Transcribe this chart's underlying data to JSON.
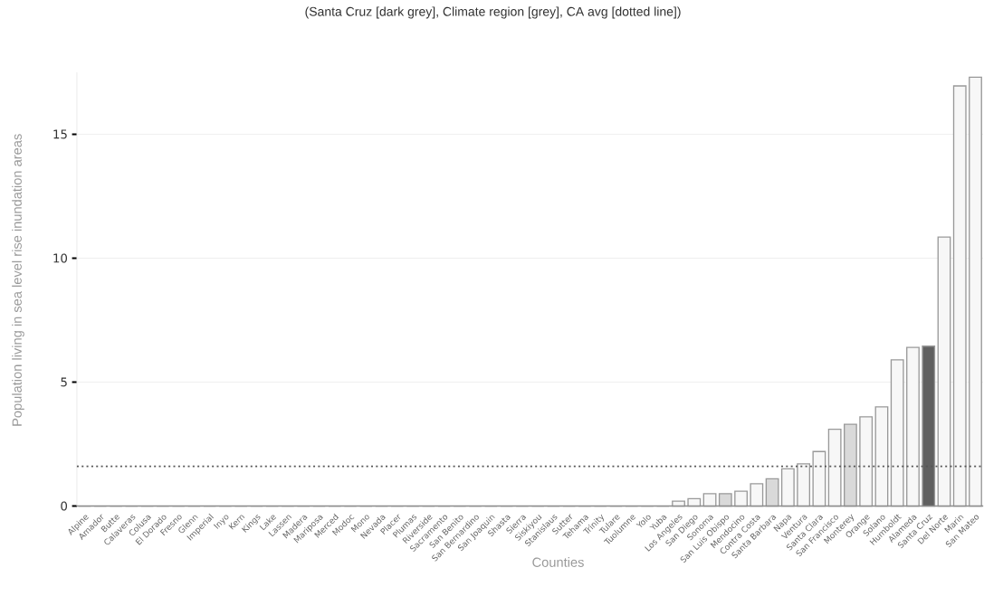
{
  "chart_data": {
    "type": "bar",
    "title": "(Santa Cruz [dark grey], Climate region [grey], CA avg [dotted line])",
    "xlabel": "Counties",
    "ylabel": "Population living in sea level rise inundation areas",
    "categories": [
      "Alpine",
      "Amador",
      "Butte",
      "Calaveras",
      "Colusa",
      "El Dorado",
      "Fresno",
      "Glenn",
      "Imperial",
      "Inyo",
      "Kern",
      "Kings",
      "Lake",
      "Lassen",
      "Madera",
      "Mariposa",
      "Merced",
      "Modoc",
      "Mono",
      "Nevada",
      "Placer",
      "Plumas",
      "Riverside",
      "Sacramento",
      "San Benito",
      "San Bernardino",
      "San Joaquin",
      "Shasta",
      "Sierra",
      "Siskiyou",
      "Stanislaus",
      "Sutter",
      "Tehama",
      "Trinity",
      "Tulare",
      "Tuolumne",
      "Yolo",
      "Yuba",
      "Los Angeles",
      "San Diego",
      "Sonoma",
      "San Luis Obispo",
      "Mendocino",
      "Contra Costa",
      "Santa Barbara",
      "Napa",
      "Ventura",
      "Santa Clara",
      "San Francisco",
      "Monterey",
      "Orange",
      "Solano",
      "Humboldt",
      "Alameda",
      "Santa Cruz",
      "Del Norte",
      "Marin",
      "San Mateo"
    ],
    "values": [
      0,
      0,
      0,
      0,
      0,
      0,
      0,
      0,
      0,
      0,
      0,
      0,
      0,
      0,
      0,
      0,
      0,
      0,
      0,
      0,
      0,
      0,
      0,
      0,
      0,
      0,
      0,
      0,
      0,
      0,
      0,
      0,
      0,
      0,
      0,
      0,
      0,
      0,
      0.2,
      0.3,
      0.5,
      0.5,
      0.6,
      0.9,
      1.1,
      1.5,
      1.7,
      2.2,
      3.1,
      3.3,
      3.6,
      4.0,
      5.9,
      6.4,
      6.45,
      10.85,
      16.95,
      17.3
    ],
    "colors": [
      "#f7f7f7",
      "#f7f7f7",
      "#f7f7f7",
      "#f7f7f7",
      "#f7f7f7",
      "#f7f7f7",
      "#f7f7f7",
      "#f7f7f7",
      "#f7f7f7",
      "#f7f7f7",
      "#f7f7f7",
      "#f7f7f7",
      "#f7f7f7",
      "#f7f7f7",
      "#f7f7f7",
      "#f7f7f7",
      "#f7f7f7",
      "#f7f7f7",
      "#f7f7f7",
      "#f7f7f7",
      "#f7f7f7",
      "#f7f7f7",
      "#f7f7f7",
      "#f7f7f7",
      "#f7f7f7",
      "#f7f7f7",
      "#f7f7f7",
      "#f7f7f7",
      "#f7f7f7",
      "#f7f7f7",
      "#f7f7f7",
      "#f7f7f7",
      "#f7f7f7",
      "#f7f7f7",
      "#f7f7f7",
      "#f7f7f7",
      "#f7f7f7",
      "#f7f7f7",
      "#f7f7f7",
      "#f7f7f7",
      "#f7f7f7",
      "#d9d9d9",
      "#f7f7f7",
      "#f7f7f7",
      "#d9d9d9",
      "#f7f7f7",
      "#f7f7f7",
      "#f7f7f7",
      "#f7f7f7",
      "#d9d9d9",
      "#f7f7f7",
      "#f7f7f7",
      "#f7f7f7",
      "#f7f7f7",
      "#606060",
      "#f7f7f7",
      "#f7f7f7",
      "#f7f7f7"
    ],
    "ylim": [
      0,
      17.5
    ],
    "yticks": [
      0,
      5,
      10,
      15
    ],
    "grid": "y",
    "ref_lines": [
      {
        "axis": "y",
        "value": 1.6,
        "line_style": "dotted",
        "color": "#555555"
      }
    ]
  }
}
